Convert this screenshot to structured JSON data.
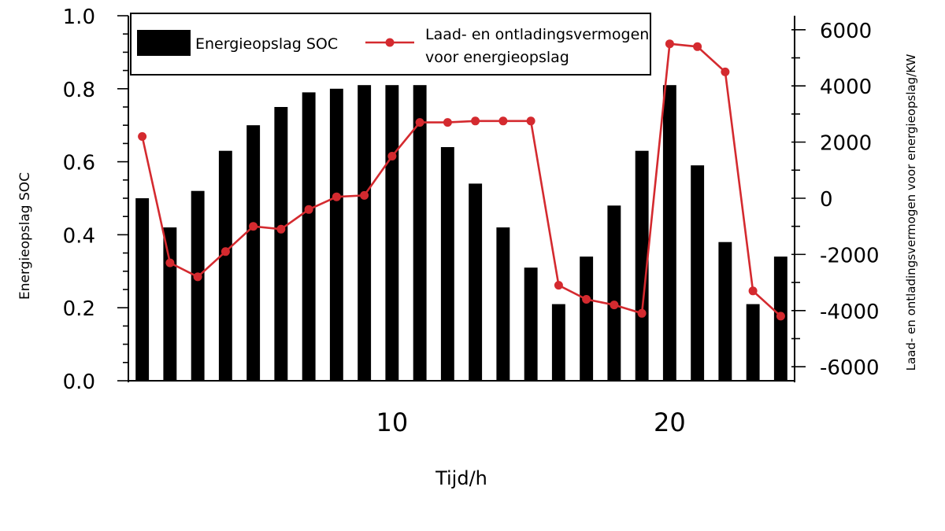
{
  "chart_data": {
    "type": "bar+line",
    "title": "",
    "xlabel": "Tijd/h",
    "ylabel_left": "Energieopslag SOC",
    "ylabel_right": "Laad- en ontladingsvermogen voor energieopslag/KW",
    "x": [
      1,
      2,
      3,
      4,
      5,
      6,
      7,
      8,
      9,
      10,
      11,
      12,
      13,
      14,
      15,
      16,
      17,
      18,
      19,
      20,
      21,
      22,
      23,
      24
    ],
    "x_ticks": [
      10,
      20
    ],
    "x_tick_labels": [
      "10",
      "20"
    ],
    "xlim": [
      0.5,
      24.5
    ],
    "ylim_left": [
      0,
      1.0
    ],
    "y_ticks_left": [
      0.0,
      0.2,
      0.4,
      0.6,
      0.8,
      1.0
    ],
    "y_tick_labels_left": [
      "0.0",
      "0.2",
      "0.4",
      "0.6",
      "0.8",
      "1.0"
    ],
    "ylim_right": [
      -6500,
      6500
    ],
    "y_ticks_right": [
      -6000,
      -4000,
      -2000,
      0,
      2000,
      4000,
      6000
    ],
    "y_tick_labels_right": [
      "-6000",
      "-4000",
      "-2000",
      "0",
      "2000",
      "4000",
      "6000"
    ],
    "legend_position": "top",
    "grid": false,
    "series": [
      {
        "name": "Energieopslag SOC",
        "kind": "bar",
        "axis": "left",
        "color": "#000000",
        "values": [
          0.5,
          0.42,
          0.52,
          0.63,
          0.7,
          0.75,
          0.79,
          0.8,
          0.81,
          0.81,
          0.81,
          0.64,
          0.54,
          0.42,
          0.31,
          0.21,
          0.34,
          0.48,
          0.63,
          0.81,
          0.59,
          0.38,
          0.21,
          0.34
        ]
      },
      {
        "name_lines": [
          "Laad- en ontladingsvermogen",
          "voor energieopslag"
        ],
        "kind": "line",
        "axis": "right",
        "color": "#d42a2f",
        "values": [
          2200,
          -2300,
          -2800,
          -1900,
          -1000,
          -1100,
          -400,
          50,
          100,
          1500,
          2700,
          2700,
          2750,
          2750,
          2750,
          -3100,
          -3600,
          -3800,
          -4100,
          5500,
          5400,
          4500,
          -3300,
          -4200
        ]
      }
    ]
  }
}
